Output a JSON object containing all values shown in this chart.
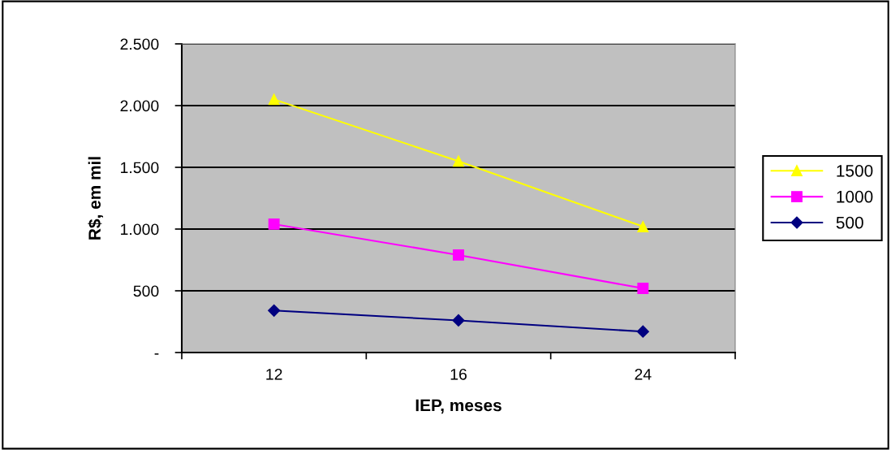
{
  "chart_data": {
    "type": "line",
    "xlabel": "IEP, meses",
    "ylabel": "R$, em mil",
    "categories": [
      "12",
      "16",
      "24"
    ],
    "series": [
      {
        "name": "1500",
        "color": "#ffff00",
        "marker": "triangle",
        "values": [
          2050,
          1550,
          1020
        ]
      },
      {
        "name": "1000",
        "color": "#ff00ff",
        "marker": "square",
        "values": [
          1040,
          790,
          520
        ]
      },
      {
        "name": "500",
        "color": "#000080",
        "marker": "diamond",
        "values": [
          340,
          260,
          170
        ]
      }
    ],
    "ylim": [
      0,
      2500
    ],
    "yticks": [
      {
        "value": 0,
        "label": "-"
      },
      {
        "value": 500,
        "label": "500"
      },
      {
        "value": 1000,
        "label": "1.000"
      },
      {
        "value": 1500,
        "label": "1.500"
      },
      {
        "value": 2000,
        "label": "2.000"
      },
      {
        "value": 2500,
        "label": "2.500"
      }
    ],
    "grid": "y",
    "legend": "right",
    "line_style": "solid"
  }
}
